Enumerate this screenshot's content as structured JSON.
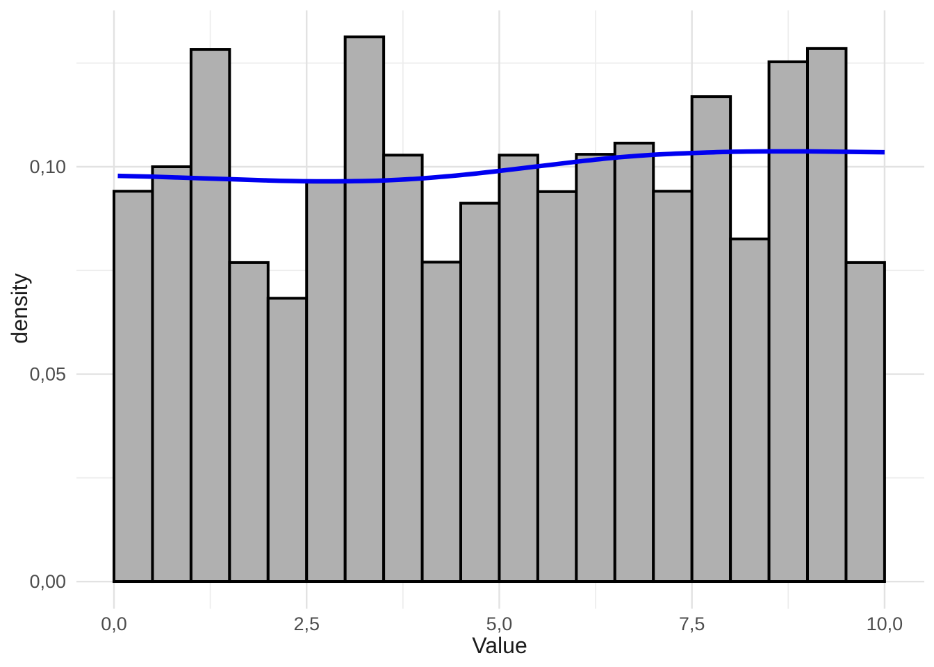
{
  "chart_data": {
    "type": "bar",
    "subtype": "histogram_with_density_curve",
    "title": "",
    "xlabel": "Value",
    "ylabel": "density",
    "legend": "none",
    "grid": "major+minor",
    "xlim": [
      -0.487,
      10.515
    ],
    "ylim": [
      -0.00653,
      0.13769
    ],
    "x_ticks": [
      {
        "value": 0.0,
        "label": "0,0"
      },
      {
        "value": 2.5,
        "label": "2,5"
      },
      {
        "value": 5.0,
        "label": "5,0"
      },
      {
        "value": 7.5,
        "label": "7,5"
      },
      {
        "value": 10.0,
        "label": "10,0"
      }
    ],
    "y_ticks": [
      {
        "value": 0.0,
        "label": "0,00"
      },
      {
        "value": 0.05,
        "label": "0,05"
      },
      {
        "value": 0.1,
        "label": "0,10"
      }
    ],
    "x_minor_gridlines": [
      1.25,
      3.75,
      6.25,
      8.75
    ],
    "y_minor_gridlines": [
      0.025,
      0.075,
      0.125
    ],
    "histogram": {
      "bin_width": 0.5,
      "bin_edges": [
        0,
        0.5,
        1,
        1.5,
        2,
        2.5,
        3,
        3.5,
        4,
        4.5,
        5,
        5.5,
        6,
        6.5,
        7,
        7.5,
        8,
        8.5,
        9,
        9.5,
        10
      ],
      "densities": [
        0.0941,
        0.1,
        0.1283,
        0.0769,
        0.0683,
        0.0963,
        0.1313,
        0.1028,
        0.077,
        0.0912,
        0.1028,
        0.094,
        0.103,
        0.1057,
        0.0941,
        0.1169,
        0.0826,
        0.1253,
        0.1285,
        0.0769
      ]
    },
    "density_curve": {
      "x": [
        0.05,
        0.5,
        1.0,
        1.5,
        2.0,
        2.5,
        3.0,
        3.5,
        4.0,
        4.5,
        5.0,
        5.5,
        6.0,
        6.5,
        7.0,
        7.5,
        8.0,
        8.5,
        9.0,
        9.5,
        10.0
      ],
      "y": [
        0.0978,
        0.0976,
        0.0973,
        0.097,
        0.0967,
        0.0965,
        0.0965,
        0.0967,
        0.0972,
        0.098,
        0.099,
        0.1001,
        0.1012,
        0.1022,
        0.1029,
        0.1033,
        0.1036,
        0.1037,
        0.1037,
        0.1036,
        0.1035
      ]
    },
    "colors": {
      "bar_fill": "#b0b0b0",
      "bar_outline": "#000000",
      "density_line": "#0000f0",
      "grid_major": "#e2e2e2",
      "grid_minor": "#ededed",
      "tick_label": "#4d4d4d",
      "axis_title": "#1b1b1b",
      "background": "#ffffff"
    }
  }
}
